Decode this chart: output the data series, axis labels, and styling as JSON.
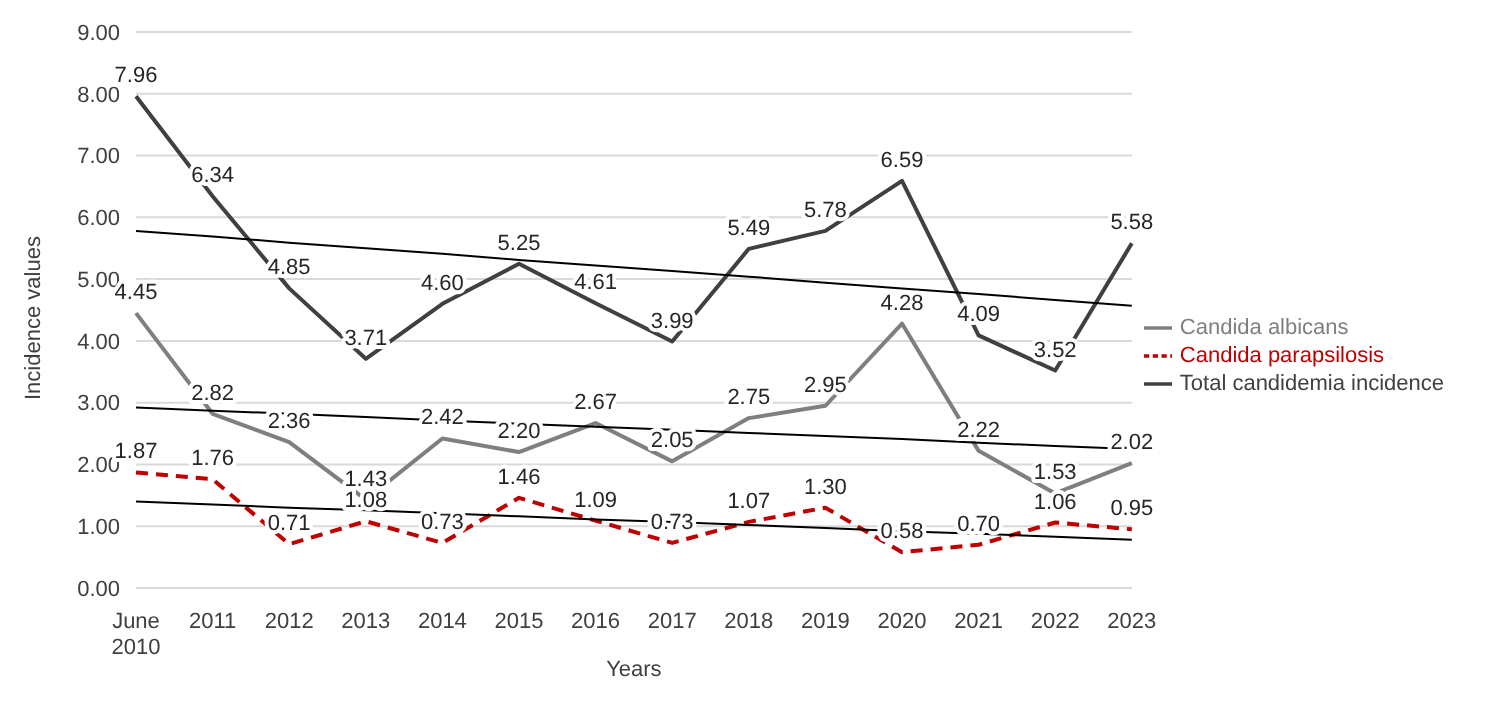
{
  "chart_data": {
    "type": "line",
    "xlabel": "Years",
    "ylabel": "Incidence values",
    "categories": [
      "June 2010",
      "2011",
      "2012",
      "2013",
      "2014",
      "2015",
      "2016",
      "2017",
      "2018",
      "2019",
      "2020",
      "2021",
      "2022",
      "2023"
    ],
    "ylim": [
      0,
      9
    ],
    "yticks": [
      {
        "value": 0,
        "label": "0.00"
      },
      {
        "value": 1,
        "label": "1.00"
      },
      {
        "value": 2,
        "label": "2.00"
      },
      {
        "value": 3,
        "label": "3.00"
      },
      {
        "value": 4,
        "label": "4.00"
      },
      {
        "value": 5,
        "label": "5.00"
      },
      {
        "value": 6,
        "label": "6.00"
      },
      {
        "value": 7,
        "label": "7.00"
      },
      {
        "value": 8,
        "label": "8.00"
      },
      {
        "value": 9,
        "label": "9.00"
      }
    ],
    "grid": "y",
    "legend": "right",
    "marker": "none",
    "series": [
      {
        "name": "Candida albicans",
        "color": "#7f7f7f",
        "line_style": "solid",
        "values": [
          4.45,
          2.82,
          2.36,
          1.43,
          2.42,
          2.2,
          2.67,
          2.05,
          2.75,
          2.95,
          4.28,
          2.22,
          1.53,
          2.02
        ],
        "value_labels": [
          "4.45",
          "2.82",
          "2.36",
          "1.43",
          "2.42",
          "2.20",
          "2.67",
          "2.05",
          "2.75",
          "2.95",
          "4.28",
          "2.22",
          "1.53",
          "2.02"
        ]
      },
      {
        "name": "Candida parapsilosis",
        "color": "#c00000",
        "line_style": "dashed",
        "values": [
          1.87,
          1.76,
          0.71,
          1.08,
          0.73,
          1.46,
          1.09,
          0.73,
          1.07,
          1.3,
          0.58,
          0.7,
          1.06,
          0.95
        ],
        "value_labels": [
          "1.87",
          "1.76",
          "0.71",
          "1.08",
          "0.73",
          "1.46",
          "1.09",
          "0.73",
          "1.07",
          "1.30",
          "0.58",
          "0.70",
          "1.06",
          "0.95"
        ]
      },
      {
        "name": "Total candidemia incidence",
        "color": "#404040",
        "line_style": "solid",
        "values": [
          7.96,
          6.34,
          4.85,
          3.71,
          4.6,
          5.25,
          4.61,
          3.99,
          5.49,
          5.78,
          6.59,
          4.09,
          3.52,
          5.58
        ],
        "value_labels": [
          "7.96",
          "6.34",
          "4.85",
          "3.71",
          "4.60",
          "5.25",
          "4.61",
          "3.99",
          "5.49",
          "5.78",
          "6.59",
          "4.09",
          "3.52",
          "5.58"
        ]
      },
      {
        "type": "line",
        "color": "#000000",
        "line_style": "solid",
        "values": [
          5.78,
          5.69,
          5.59,
          5.5,
          5.41,
          5.31,
          5.22,
          5.13,
          5.04,
          4.94,
          4.85,
          4.76,
          4.66,
          4.57
        ]
      },
      {
        "type": "line",
        "color": "#000000",
        "line_style": "solid",
        "values": [
          2.92,
          2.87,
          2.82,
          2.77,
          2.71,
          2.66,
          2.61,
          2.56,
          2.51,
          2.46,
          2.41,
          2.35,
          2.3,
          2.25
        ]
      },
      {
        "type": "line",
        "color": "#000000",
        "line_style": "solid",
        "values": [
          1.4,
          1.35,
          1.3,
          1.26,
          1.21,
          1.16,
          1.11,
          1.07,
          1.02,
          0.97,
          0.92,
          0.88,
          0.83,
          0.78
        ]
      }
    ]
  }
}
